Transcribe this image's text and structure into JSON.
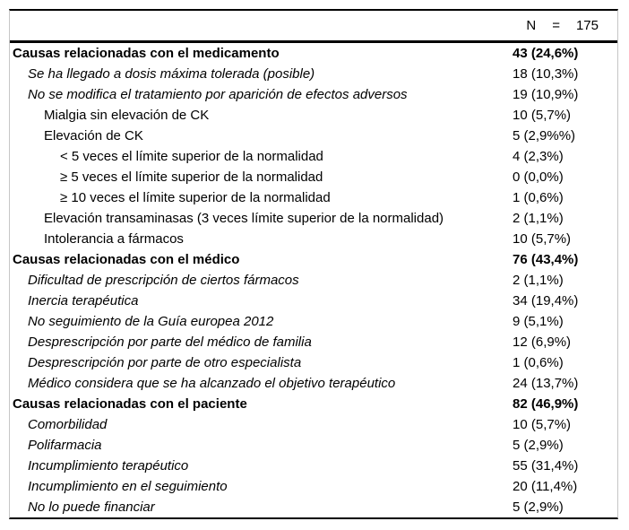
{
  "header": {
    "n_label": "N",
    "equals_sign": "=",
    "n_value": "175"
  },
  "table": {
    "rows": [
      {
        "label": "Causas relacionadas con el medicamento",
        "value": "43 (24,6%)",
        "level": 0,
        "emphasis": "bold"
      },
      {
        "label": "Se ha llegado a dosis máxima tolerada (posible)",
        "value": "18 (10,3%)",
        "level": 1,
        "emphasis": "italic"
      },
      {
        "label": "No se modifica el tratamiento por aparición de efectos adversos",
        "value": "19 (10,9%)",
        "level": 1,
        "emphasis": "italic"
      },
      {
        "label": "Mialgia sin elevación de CK",
        "value": "10 (5,7%)",
        "level": 2,
        "emphasis": "normal"
      },
      {
        "label": "Elevación de CK",
        "value": "5 (2,9%%)",
        "level": 2,
        "emphasis": "normal"
      },
      {
        "label": "< 5 veces el límite superior de la normalidad",
        "value": "4 (2,3%)",
        "level": 3,
        "emphasis": "normal"
      },
      {
        "label": "≥ 5 veces el límite superior de la normalidad",
        "value": "0 (0,0%)",
        "level": 3,
        "emphasis": "normal"
      },
      {
        "label": "≥ 10 veces el límite superior de la normalidad",
        "value": "1 (0,6%)",
        "level": 3,
        "emphasis": "normal"
      },
      {
        "label": "Elevación transaminasas (3 veces límite superior de la normalidad)",
        "value": "2 (1,1%)",
        "level": 2,
        "emphasis": "normal"
      },
      {
        "label": "Intolerancia a fármacos",
        "value": "10 (5,7%)",
        "level": 2,
        "emphasis": "normal"
      },
      {
        "label": "Causas relacionadas con el médico",
        "value": "76 (43,4%)",
        "level": 0,
        "emphasis": "bold"
      },
      {
        "label": "Dificultad de prescripción de ciertos fármacos",
        "value": "2 (1,1%)",
        "level": 1,
        "emphasis": "italic"
      },
      {
        "label": "Inercia terapéutica",
        "value": "34 (19,4%)",
        "level": 1,
        "emphasis": "italic"
      },
      {
        "label": "No seguimiento de la Guía europea 2012",
        "value": "9 (5,1%)",
        "level": 1,
        "emphasis": "italic"
      },
      {
        "label": "Desprescripción por parte del médico de familia",
        "value": "12 (6,9%)",
        "level": 1,
        "emphasis": "italic"
      },
      {
        "label": "Desprescripción por parte de otro especialista",
        "value": "1 (0,6%)",
        "level": 1,
        "emphasis": "italic"
      },
      {
        "label": "Médico considera que se ha alcanzado el objetivo terapéutico",
        "value": "24 (13,7%)",
        "level": 1,
        "emphasis": "italic"
      },
      {
        "label": "Causas relacionadas con el paciente",
        "value": "82 (46,9%)",
        "level": 0,
        "emphasis": "bold"
      },
      {
        "label": "Comorbilidad",
        "value": "10 (5,7%)",
        "level": 1,
        "emphasis": "italic"
      },
      {
        "label": "Polifarmacia",
        "value": "5 (2,9%)",
        "level": 1,
        "emphasis": "italic"
      },
      {
        "label": "Incumplimiento terapéutico",
        "value": "55 (31,4%)",
        "level": 1,
        "emphasis": "italic"
      },
      {
        "label": "Incumplimiento en el seguimiento",
        "value": "20 (11,4%)",
        "level": 1,
        "emphasis": "italic"
      },
      {
        "label": "No lo puede financiar",
        "value": "5 (2,9%)",
        "level": 1,
        "emphasis": "italic"
      }
    ]
  },
  "colors": {
    "text": "#000000",
    "rule": "#000000",
    "frame_border": "#c6c6c6",
    "background": "#ffffff"
  }
}
